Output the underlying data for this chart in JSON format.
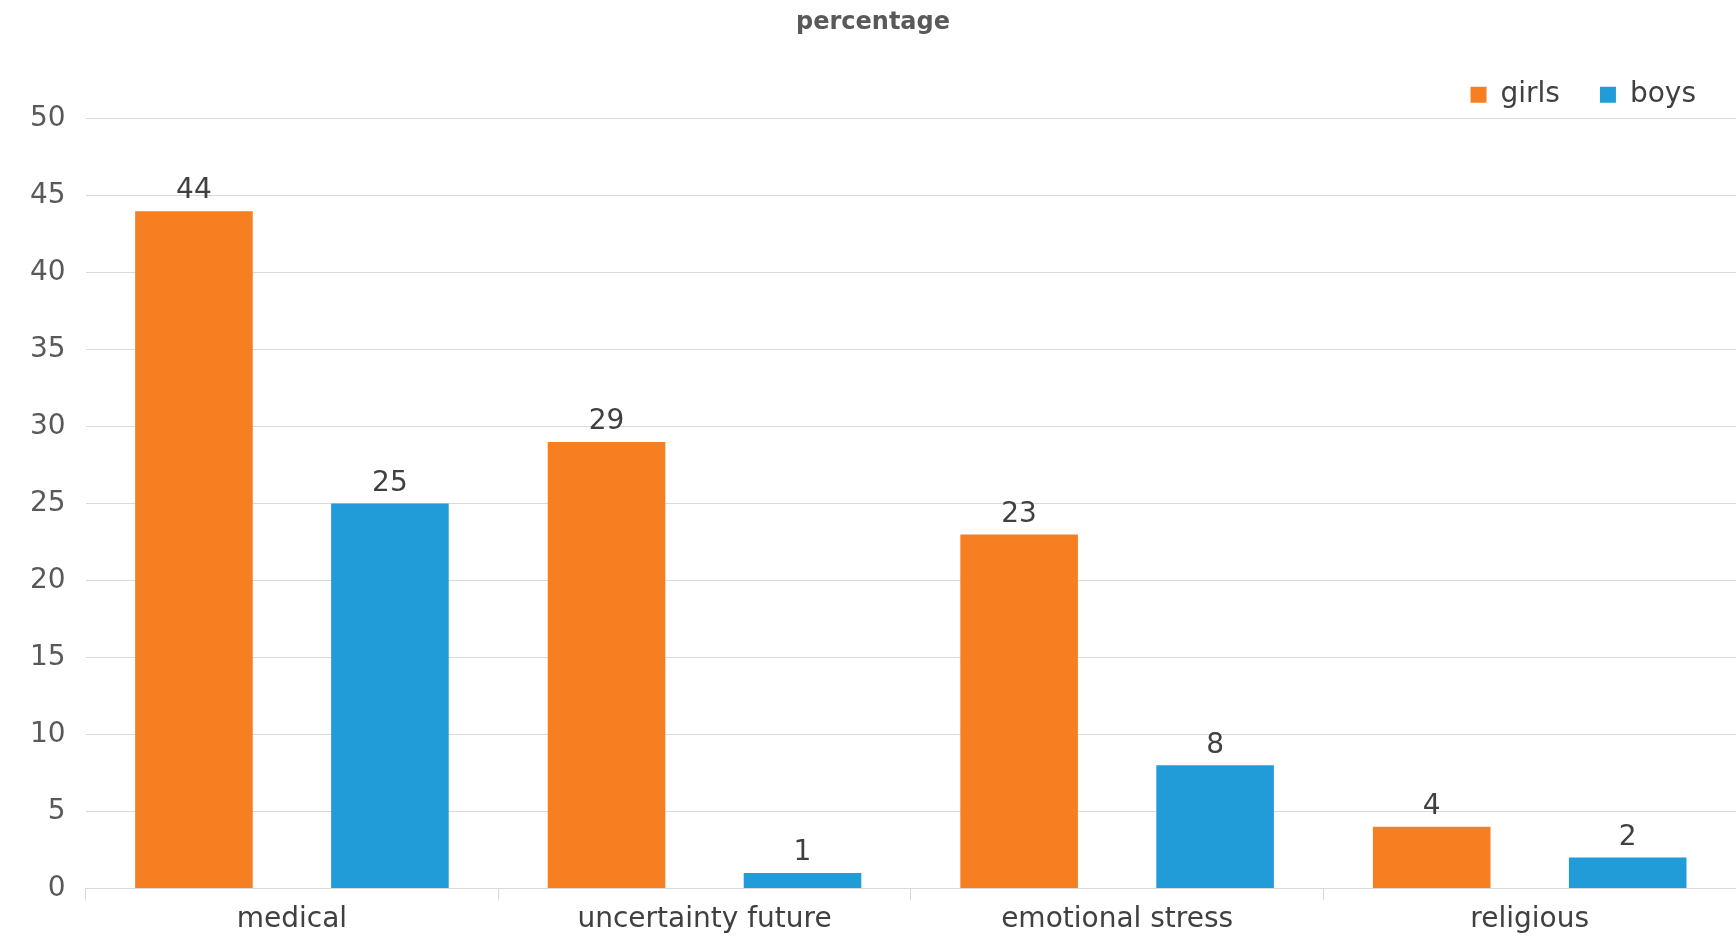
{
  "chart_data": {
    "type": "bar",
    "title": "percentage",
    "categories": [
      "medical",
      "uncertainty future",
      "emotional stress",
      "religious"
    ],
    "series": [
      {
        "name": "girls",
        "color": "#f67f22",
        "values": [
          44,
          29,
          23,
          4
        ]
      },
      {
        "name": "boys",
        "color": "#219cd8",
        "values": [
          25,
          1,
          8,
          2
        ]
      }
    ],
    "ylim": [
      0,
      50
    ],
    "yticks": [
      0,
      5,
      10,
      15,
      20,
      25,
      30,
      35,
      40,
      45,
      50
    ],
    "grid": "y",
    "legend": "top right",
    "data_labels": true
  }
}
